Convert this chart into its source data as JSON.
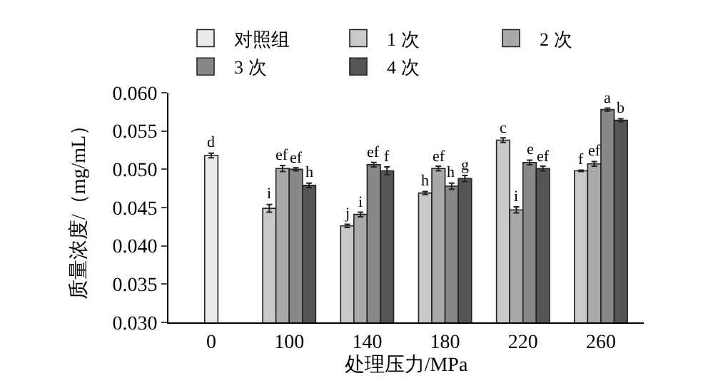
{
  "chart_data": {
    "type": "bar",
    "xlabel": "处理压力/MPa",
    "ylabel": "质量浓度/（mg/mL）",
    "categories": [
      "0",
      "100",
      "140",
      "180",
      "220",
      "260"
    ],
    "series": [
      {
        "name": "对照组",
        "color": "#eaeaea",
        "values": [
          0.0518,
          null,
          null,
          null,
          null,
          null
        ],
        "errors": [
          0.0003,
          null,
          null,
          null,
          null,
          null
        ],
        "value_labels": [
          "d",
          null,
          null,
          null,
          null,
          null
        ]
      },
      {
        "name": "1 次",
        "color": "#c9c9c9",
        "values": [
          null,
          0.0449,
          0.0426,
          0.0469,
          0.0538,
          0.0498
        ],
        "errors": [
          null,
          0.0005,
          0.0002,
          0.0002,
          0.0003,
          0.0001
        ],
        "value_labels": [
          null,
          "i",
          "j",
          "h",
          "c",
          "f"
        ]
      },
      {
        "name": "2 次",
        "color": "#a9a9a9",
        "values": [
          null,
          0.0501,
          0.0441,
          0.0501,
          0.0447,
          0.0507
        ],
        "errors": [
          null,
          0.0004,
          0.0003,
          0.0003,
          0.0004,
          0.0003
        ],
        "value_labels": [
          null,
          "ef",
          "i",
          "ef",
          "i",
          "ef"
        ]
      },
      {
        "name": "3 次",
        "color": "#888888",
        "values": [
          null,
          0.05,
          0.0506,
          0.0478,
          0.0509,
          0.0578
        ],
        "errors": [
          null,
          0.0002,
          0.0003,
          0.0004,
          0.0003,
          0.0002
        ],
        "value_labels": [
          null,
          "ef",
          "ef",
          "h",
          "e",
          "a"
        ]
      },
      {
        "name": "4 次",
        "color": "#555555",
        "values": [
          null,
          0.0479,
          0.0498,
          0.0488,
          0.0501,
          0.0564
        ],
        "errors": [
          null,
          0.0003,
          0.0005,
          0.0004,
          0.0003,
          0.0002
        ],
        "value_labels": [
          null,
          "h",
          "f",
          "g",
          "ef",
          "b"
        ]
      }
    ],
    "ylim": [
      0.03,
      0.06
    ],
    "yticks": [
      {
        "value": 0.03,
        "label": "0.030"
      },
      {
        "value": 0.035,
        "label": "0.035"
      },
      {
        "value": 0.04,
        "label": "0.040"
      },
      {
        "value": 0.045,
        "label": "0.045"
      },
      {
        "value": 0.05,
        "label": "0.050"
      },
      {
        "value": 0.055,
        "label": "0.055"
      },
      {
        "value": 0.06,
        "label": "0.060"
      }
    ],
    "legend": "top"
  }
}
